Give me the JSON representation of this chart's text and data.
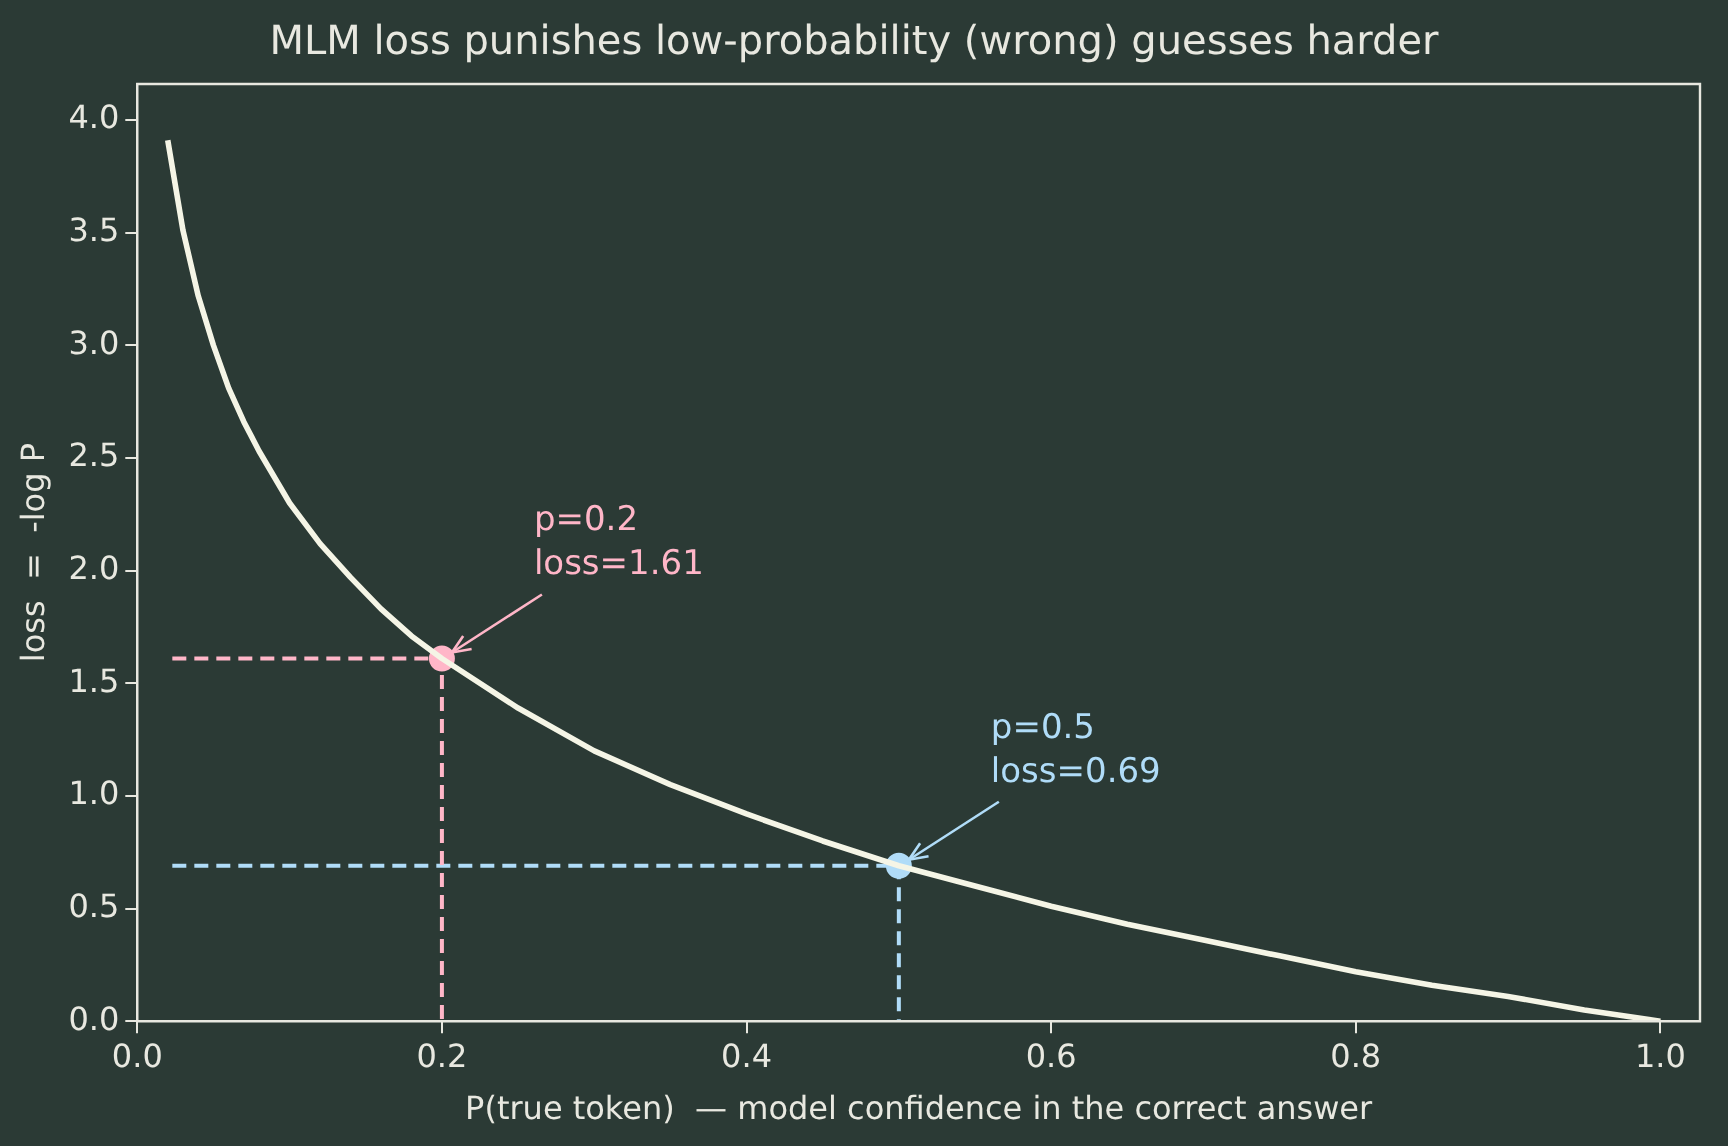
{
  "chart_data": {
    "type": "line",
    "title": "MLM loss punishes low-probability (wrong) guesses harder",
    "xlabel": "P(true token)  — model confidence in the correct answer",
    "ylabel": "loss  =  -log P",
    "xlim": [
      0,
      1.026
    ],
    "ylim": [
      0,
      4.16
    ],
    "xticks": [
      {
        "value": 0,
        "label": "0.0"
      },
      {
        "value": 0.2,
        "label": "0.2"
      },
      {
        "value": 0.4,
        "label": "0.4"
      },
      {
        "value": 0.6,
        "label": "0.6"
      },
      {
        "value": 0.8,
        "label": "0.8"
      },
      {
        "value": 1,
        "label": "1.0"
      }
    ],
    "yticks": [
      {
        "value": 0,
        "label": "0.0"
      },
      {
        "value": 0.5,
        "label": "0.5"
      },
      {
        "value": 1,
        "label": "1.0"
      },
      {
        "value": 1.5,
        "label": "1.5"
      },
      {
        "value": 2,
        "label": "2.0"
      },
      {
        "value": 2.5,
        "label": "2.5"
      },
      {
        "value": 3,
        "label": "3.0"
      },
      {
        "value": 3.5,
        "label": "3.5"
      },
      {
        "value": 4,
        "label": "4.0"
      }
    ],
    "grid": false,
    "legend": false,
    "series": [
      {
        "type": "line",
        "color": "#f5f5e6",
        "marker": "none",
        "line_style": "solid",
        "x": [
          0.02,
          0.03,
          0.04,
          0.05,
          0.06,
          0.07,
          0.08,
          0.1,
          0.12,
          0.14,
          0.16,
          0.18,
          0.2,
          0.25,
          0.3,
          0.35,
          0.4,
          0.45,
          0.5,
          0.55,
          0.6,
          0.65,
          0.7,
          0.75,
          0.8,
          0.85,
          0.9,
          0.95,
          1.0
        ],
        "values": [
          3.91,
          3.51,
          3.22,
          3.0,
          2.81,
          2.66,
          2.53,
          2.3,
          2.12,
          1.97,
          1.83,
          1.71,
          1.61,
          1.39,
          1.2,
          1.05,
          0.92,
          0.8,
          0.69,
          0.6,
          0.51,
          0.43,
          0.36,
          0.29,
          0.22,
          0.16,
          0.11,
          0.05,
          0.0
        ]
      },
      {
        "type": "line",
        "color": "#ffb6c8",
        "marker": "none",
        "line_style": "dashed",
        "x": [
          0.023,
          0.2,
          0.2
        ],
        "values": [
          1.61,
          1.61,
          0
        ]
      },
      {
        "type": "line",
        "color": "#b0dcf8",
        "marker": "none",
        "line_style": "dashed",
        "x": [
          0.023,
          0.5,
          0.5
        ],
        "values": [
          0.69,
          0.69,
          0
        ]
      },
      {
        "type": "scatter",
        "color": "#ffb6c8",
        "marker": "circle",
        "x": [
          0.2
        ],
        "values": [
          1.61
        ]
      },
      {
        "type": "scatter",
        "color": "#b0dcf8",
        "marker": "circle",
        "x": [
          0.5
        ],
        "values": [
          0.69
        ]
      }
    ],
    "annotations": [
      {
        "text": "p=0.2\nloss=1.61",
        "x": 0.2,
        "y": 1.61
      },
      {
        "text": "p=0.5\nloss=0.69",
        "x": 0.5,
        "y": 0.69
      }
    ]
  }
}
